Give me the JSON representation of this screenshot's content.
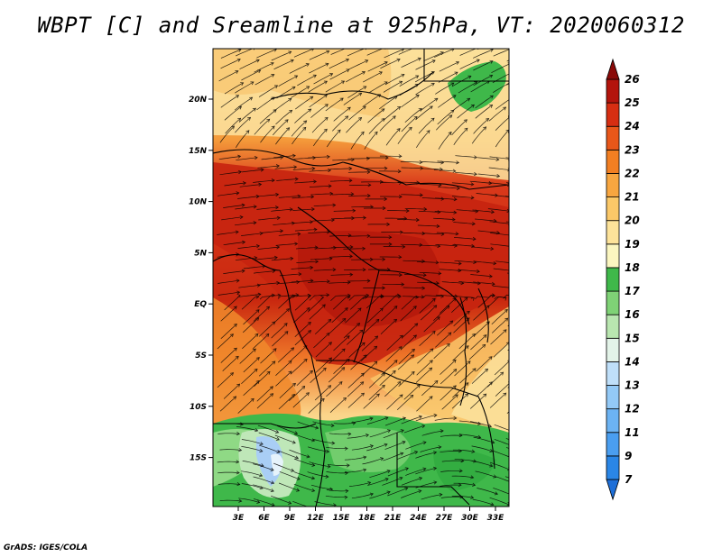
{
  "title": "WBPT [C] and Sreamline at 925hPa, VT: 2020060312",
  "credit": "GrADS: IGES/COLA",
  "map": {
    "lat_ticks": [
      "20N",
      "15N",
      "10N",
      "5N",
      "EQ",
      "5S",
      "10S",
      "15S"
    ],
    "lon_ticks": [
      "3E",
      "6E",
      "9E",
      "12E",
      "15E",
      "18E",
      "21E",
      "24E",
      "27E",
      "30E",
      "33E"
    ]
  },
  "colorbar": {
    "levels": [
      "7",
      "9",
      "11",
      "12",
      "13",
      "14",
      "15",
      "16",
      "17",
      "18",
      "19",
      "20",
      "21",
      "22",
      "23",
      "24",
      "25",
      "26"
    ],
    "colors": [
      "#1e6fd8",
      "#2a86e6",
      "#4a9ef0",
      "#6cb3f3",
      "#93c9f6",
      "#bfdff9",
      "#e3f3e8",
      "#b9e6b0",
      "#7fd276",
      "#3fb84a",
      "#fbf6c0",
      "#fde39a",
      "#fbc868",
      "#f8a640",
      "#f27f22",
      "#e8571a",
      "#d62e12",
      "#b3140c",
      "#8a0a08"
    ]
  }
}
